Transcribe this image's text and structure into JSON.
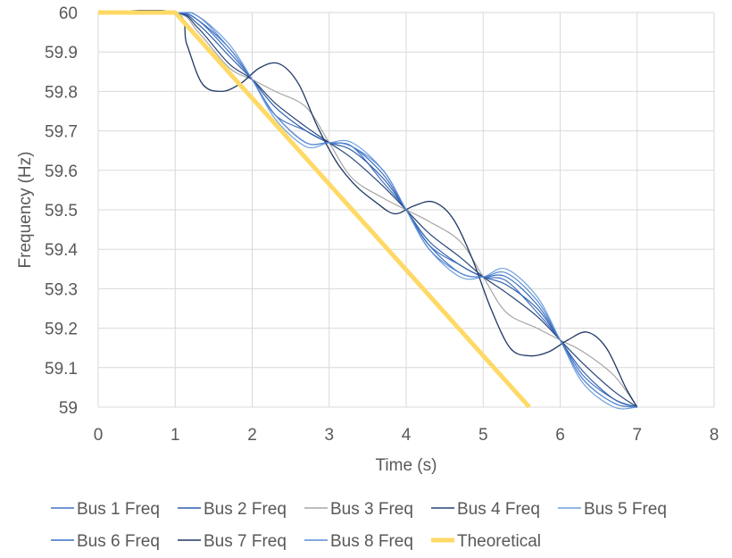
{
  "chart_data": {
    "type": "line",
    "title": "",
    "xlabel": "Time (s)",
    "ylabel": "Frequency (Hz)",
    "xlim": [
      0,
      8
    ],
    "ylim": [
      59,
      60
    ],
    "xticks": [
      "0",
      "1",
      "2",
      "3",
      "4",
      "5",
      "6",
      "7",
      "8"
    ],
    "yticks": [
      "59",
      "59.1",
      "59.2",
      "59.3",
      "59.4",
      "59.5",
      "59.6",
      "59.7",
      "59.8",
      "59.9",
      "60"
    ],
    "grid": "horizontal-and-vertical",
    "legend_position": "bottom",
    "series": [
      {
        "name": "Bus 1 Freq",
        "color": "#4472C4",
        "width": 1.2,
        "x": [
          0,
          1,
          1.3,
          1.7,
          2,
          2.3,
          2.7,
          3,
          3.3,
          3.7,
          4,
          4.3,
          4.7,
          5,
          5.3,
          5.7,
          6,
          6.3,
          6.7,
          7
        ],
        "y": [
          60,
          60,
          59.98,
          59.9,
          59.83,
          59.74,
          59.7,
          59.67,
          59.66,
          59.57,
          59.5,
          59.41,
          59.36,
          59.33,
          59.32,
          59.24,
          59.17,
          59.08,
          59.02,
          59.0
        ]
      },
      {
        "name": "Bus 2 Freq",
        "color": "#2E5FA8",
        "width": 1.2,
        "x": [
          0,
          1,
          1.3,
          1.7,
          2,
          2.3,
          2.7,
          3,
          3.3,
          3.7,
          4,
          4.3,
          4.7,
          5,
          5.3,
          5.7,
          6,
          6.3,
          6.7,
          7
        ],
        "y": [
          60,
          60,
          59.97,
          59.89,
          59.83,
          59.76,
          59.7,
          59.67,
          59.65,
          59.58,
          59.5,
          59.42,
          59.36,
          59.33,
          59.31,
          59.25,
          59.17,
          59.09,
          59.02,
          59.0
        ]
      },
      {
        "name": "Bus 3 Freq",
        "color": "#A5A5A5",
        "width": 1.2,
        "x": [
          0,
          1,
          1.3,
          1.7,
          2,
          2.3,
          2.7,
          3,
          3.3,
          3.7,
          4,
          4.3,
          4.7,
          5,
          5.3,
          5.7,
          6,
          6.3,
          6.7,
          7
        ],
        "y": [
          60,
          60,
          59.95,
          59.86,
          59.83,
          59.8,
          59.76,
          59.67,
          59.58,
          59.53,
          59.5,
          59.47,
          59.42,
          59.33,
          59.24,
          59.2,
          59.17,
          59.14,
          59.08,
          59.0
        ]
      },
      {
        "name": "Bus 4 Freq",
        "color": "#264478",
        "width": 1.2,
        "x": [
          0,
          1,
          1.3,
          1.7,
          2,
          2.3,
          2.7,
          3,
          3.3,
          3.7,
          4,
          4.3,
          4.7,
          5,
          5.3,
          5.7,
          6,
          6.3,
          6.7,
          7
        ],
        "y": [
          60,
          60,
          59.96,
          59.87,
          59.83,
          59.77,
          59.71,
          59.67,
          59.63,
          59.56,
          59.5,
          59.44,
          59.38,
          59.33,
          59.29,
          59.23,
          59.17,
          59.11,
          59.04,
          59.0
        ]
      },
      {
        "name": "Bus 5 Freq",
        "color": "#6FA0DC",
        "width": 1.2,
        "x": [
          0,
          1,
          1.3,
          1.7,
          2,
          2.3,
          2.7,
          3,
          3.3,
          3.7,
          4,
          4.3,
          4.7,
          5,
          5.3,
          5.7,
          6,
          6.3,
          6.7,
          7
        ],
        "y": [
          60,
          60,
          59.99,
          59.92,
          59.83,
          59.73,
          59.66,
          59.67,
          59.67,
          59.6,
          59.5,
          59.4,
          59.33,
          59.33,
          59.35,
          59.28,
          59.17,
          59.06,
          59.0,
          59.0
        ]
      },
      {
        "name": "Bus 6 Freq",
        "color": "#3A6FC0",
        "width": 1.2,
        "x": [
          0,
          1,
          1.3,
          1.7,
          2,
          2.3,
          2.7,
          3,
          3.3,
          3.7,
          4,
          4.3,
          4.7,
          5,
          5.3,
          5.7,
          6,
          6.3,
          6.7,
          7
        ],
        "y": [
          60,
          60,
          59.98,
          59.91,
          59.83,
          59.74,
          59.67,
          59.67,
          59.66,
          59.59,
          59.5,
          59.41,
          59.34,
          59.33,
          59.33,
          59.26,
          59.17,
          59.07,
          59.01,
          59.0
        ]
      },
      {
        "name": "Bus 7 Freq",
        "color": "#1F3864",
        "width": 1.3,
        "x": [
          0,
          1,
          1.15,
          1.35,
          1.6,
          1.85,
          2.1,
          2.35,
          2.6,
          2.85,
          3.1,
          3.35,
          3.6,
          3.85,
          4.1,
          4.35,
          4.6,
          4.85,
          5.1,
          5.35,
          5.6,
          5.85,
          6.1,
          6.35,
          6.6,
          6.85,
          7
        ],
        "y": [
          60,
          60,
          59.92,
          59.82,
          59.8,
          59.82,
          59.86,
          59.87,
          59.82,
          59.71,
          59.62,
          59.56,
          59.52,
          59.49,
          59.51,
          59.52,
          59.48,
          59.38,
          59.25,
          59.15,
          59.13,
          59.14,
          59.17,
          59.19,
          59.15,
          59.05,
          59.0
        ]
      },
      {
        "name": "Bus 8 Freq",
        "color": "#5B8BD6",
        "width": 1.2,
        "x": [
          0,
          1,
          1.3,
          1.7,
          2,
          2.3,
          2.7,
          3,
          3.3,
          3.7,
          4,
          4.3,
          4.7,
          5,
          5.3,
          5.7,
          6,
          6.3,
          6.7,
          7
        ],
        "y": [
          60,
          60,
          59.99,
          59.91,
          59.83,
          59.74,
          59.67,
          59.67,
          59.66,
          59.6,
          59.5,
          59.4,
          59.34,
          59.33,
          59.34,
          59.27,
          59.17,
          59.07,
          59.01,
          59.0
        ]
      },
      {
        "name": "Theoretical",
        "color": "#FFD966",
        "width": 5,
        "x": [
          0,
          1,
          5.6
        ],
        "y": [
          60,
          60,
          59.0
        ]
      }
    ]
  }
}
